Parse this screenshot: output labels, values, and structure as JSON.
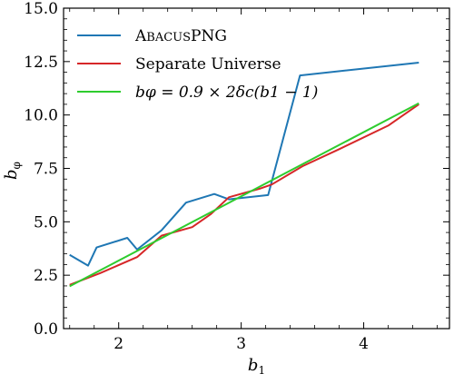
{
  "chart_data": {
    "type": "line",
    "xlabel": "b",
    "xlabel_sub": "1",
    "ylabel": "b",
    "ylabel_sub": "φ",
    "xlim": [
      1.55,
      4.7
    ],
    "ylim": [
      0.0,
      15.0
    ],
    "xticks": [
      2,
      3,
      4
    ],
    "yticks": [
      0.0,
      2.5,
      5.0,
      7.5,
      10.0,
      12.5,
      15.0
    ],
    "ytick_labels": [
      "0.0",
      "2.5",
      "5.0",
      "7.5",
      "10.0",
      "12.5",
      "15.0"
    ],
    "legend_position": "top-left",
    "grid": false,
    "series": [
      {
        "name": "ABACUSPNG",
        "legend_prefix": "A",
        "legend_smallcaps": "BACUS",
        "legend_suffix": "PNG",
        "color": "#1f77b4",
        "x": [
          1.6,
          1.75,
          1.82,
          2.07,
          2.15,
          2.35,
          2.55,
          2.78,
          2.9,
          3.22,
          3.48,
          4.45
        ],
        "y": [
          3.45,
          2.95,
          3.8,
          4.25,
          3.7,
          4.6,
          5.9,
          6.3,
          6.05,
          6.25,
          11.85,
          12.45
        ]
      },
      {
        "name": "Separate Universe",
        "color": "#d62728",
        "x": [
          1.6,
          1.85,
          2.15,
          2.35,
          2.6,
          2.75,
          2.9,
          3.15,
          3.25,
          3.5,
          3.8,
          4.2,
          4.45
        ],
        "y": [
          2.05,
          2.6,
          3.35,
          4.35,
          4.75,
          5.35,
          6.15,
          6.55,
          6.75,
          7.6,
          8.4,
          9.5,
          10.5
        ]
      },
      {
        "name": "b_φ = 0.9 × 2δ_c(b_1 − 1)",
        "legend_display": "bφ = 0.9 × 2δc(b1 − 1)",
        "color": "#2ecc2e",
        "x": [
          1.6,
          4.45
        ],
        "y": [
          1.98,
          10.55
        ]
      }
    ]
  }
}
